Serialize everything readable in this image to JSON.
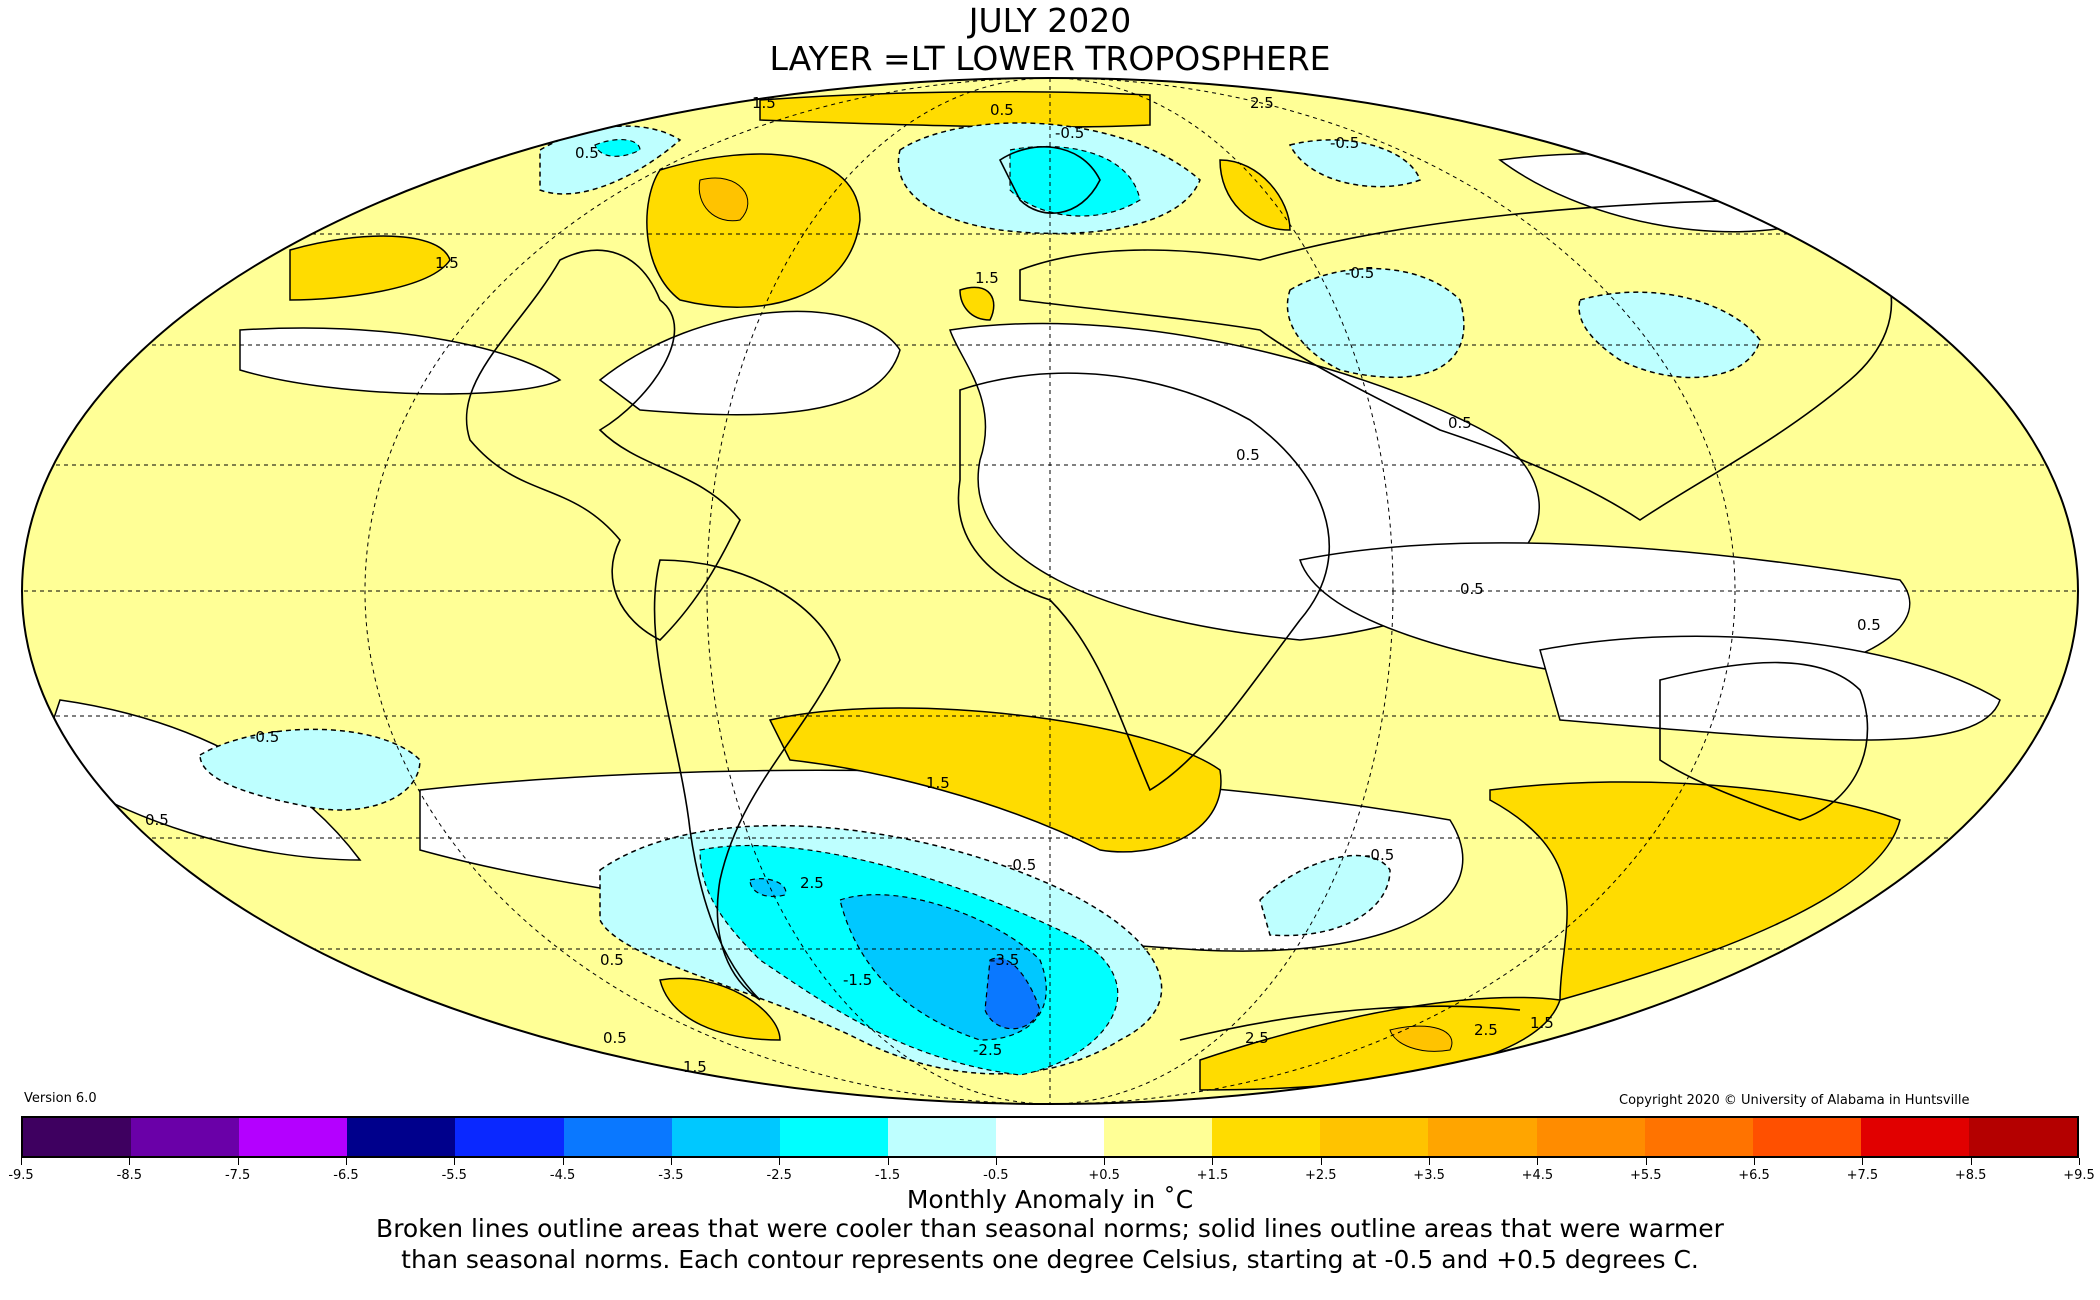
{
  "header": {
    "title": "JULY 2020",
    "subtitle": "LAYER =LT LOWER TROPOSPHERE"
  },
  "version": "Version 6.0",
  "copyright": "Copyright 2020 © University of Alabama in Huntsville",
  "contour_labels": [
    "1.5",
    "0.5",
    "-0.5",
    "1.5",
    "2.5",
    "0.5",
    "-0.5",
    "1.5",
    "0.5",
    "0.5",
    "0.5",
    "-0.5",
    "0.5",
    "1.5",
    "-0.5",
    "0.5",
    "-0.5",
    "2.5",
    "-3.5",
    "-1.5",
    "-2.5",
    "0.5",
    "0.5",
    "1.5",
    "2.5",
    "1.5",
    "2.5",
    "-0.5"
  ],
  "colorbar": {
    "colors": [
      "#3e0060",
      "#6a00a8",
      "#b400ff",
      "#00008c",
      "#0a28ff",
      "#0a78ff",
      "#00c8ff",
      "#00ffff",
      "#beffff",
      "#ffffff",
      "#ffff96",
      "#ffdc00",
      "#ffc300",
      "#ffa500",
      "#ff8c00",
      "#ff7300",
      "#ff5000",
      "#e10000",
      "#b40000"
    ],
    "ticks": [
      "-9.5",
      "-8.5",
      "-7.5",
      "-6.5",
      "-5.5",
      "-4.5",
      "-3.5",
      "-2.5",
      "-1.5",
      "-0.5",
      "+0.5",
      "+1.5",
      "+2.5",
      "+3.5",
      "+4.5",
      "+5.5",
      "+6.5",
      "+7.5",
      "+8.5",
      "+9.5"
    ]
  },
  "legend": {
    "label": "Monthly Anomaly in ˚C",
    "line1": "Broken lines outline areas that were cooler than seasonal norms; solid lines outline areas that were warmer",
    "line2": "than seasonal norms. Each contour represents one degree Celsius, starting at -0.5 and +0.5 degrees C."
  }
}
